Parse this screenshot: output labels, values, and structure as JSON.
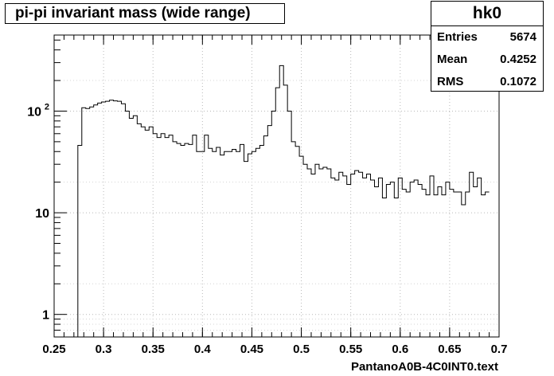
{
  "title": "pi-pi invariant mass (wide range)",
  "stats": {
    "name": "hk0",
    "rows": [
      {
        "label": "Entries",
        "value": "5674"
      },
      {
        "label": "Mean",
        "value": "0.4252"
      },
      {
        "label": "RMS",
        "value": "0.1072"
      }
    ]
  },
  "footer": "PantanoA0B-4C0INT0.text",
  "chart_data": {
    "type": "histogram",
    "title": "pi-pi invariant mass (wide range)",
    "xlabel": "",
    "ylabel": "",
    "xlim": [
      0.25,
      0.7
    ],
    "ylim": [
      0.6,
      560
    ],
    "yscale": "log",
    "grid": true,
    "x_ticks": [
      {
        "value": 0.25,
        "label": "0.25"
      },
      {
        "value": 0.3,
        "label": "0.3"
      },
      {
        "value": 0.35,
        "label": "0.35"
      },
      {
        "value": 0.4,
        "label": "0.4"
      },
      {
        "value": 0.45,
        "label": "0.45"
      },
      {
        "value": 0.5,
        "label": "0.5"
      },
      {
        "value": 0.55,
        "label": "0.55"
      },
      {
        "value": 0.6,
        "label": "0.6"
      },
      {
        "value": 0.65,
        "label": "0.65"
      },
      {
        "value": 0.7,
        "label": "0.7"
      }
    ],
    "y_ticks": [
      {
        "value": 1,
        "label": "1"
      },
      {
        "value": 10,
        "label": "10"
      },
      {
        "value": 100,
        "label": "10",
        "exponent": "2"
      }
    ],
    "bin_start": 0.274,
    "bin_width": 0.004,
    "values": [
      46,
      108,
      106,
      110,
      115,
      120,
      123,
      125,
      128,
      126,
      125,
      118,
      100,
      85,
      90,
      75,
      70,
      65,
      70,
      60,
      55,
      60,
      55,
      58,
      50,
      48,
      46,
      48,
      47,
      58,
      40,
      40,
      58,
      43,
      40,
      44,
      37,
      40,
      40,
      42,
      40,
      47,
      32,
      38,
      40,
      43,
      46,
      57,
      72,
      100,
      170,
      280,
      180,
      100,
      50,
      45,
      36,
      30,
      27,
      24,
      30,
      27,
      28,
      27,
      22,
      21,
      25,
      23,
      19,
      24,
      26,
      25,
      22,
      24,
      21,
      18,
      22,
      14,
      19,
      20,
      14,
      22,
      17,
      16,
      20,
      21,
      19,
      17,
      15,
      23,
      15,
      18,
      15,
      20,
      17,
      16,
      16,
      12,
      16,
      25,
      18,
      22,
      15,
      16
    ]
  }
}
